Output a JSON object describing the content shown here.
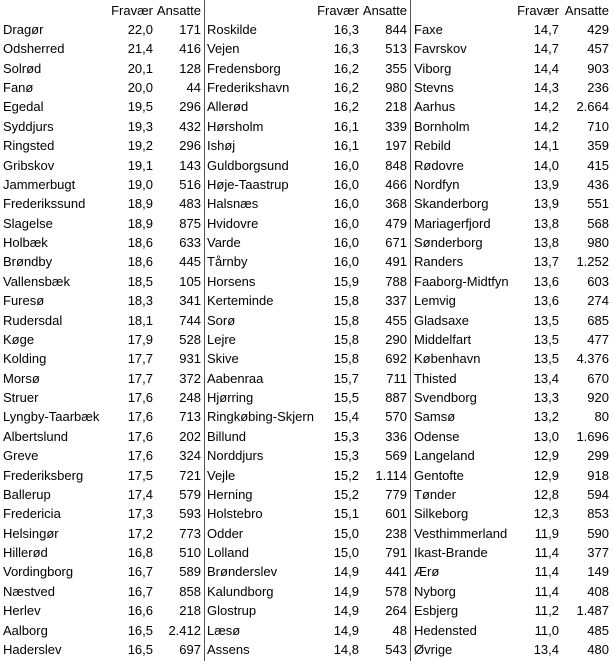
{
  "table": {
    "groups": [
      {
        "headers": [
          "Fravær",
          "Ansatte"
        ],
        "rows": [
          [
            "Dragør",
            "22,0",
            "171"
          ],
          [
            "Odsherred",
            "21,4",
            "416"
          ],
          [
            "Solrød",
            "20,1",
            "128"
          ],
          [
            "Fanø",
            "20,0",
            "44"
          ],
          [
            "Egedal",
            "19,5",
            "296"
          ],
          [
            "Syddjurs",
            "19,3",
            "432"
          ],
          [
            "Ringsted",
            "19,2",
            "296"
          ],
          [
            "Gribskov",
            "19,1",
            "143"
          ],
          [
            "Jammerbugt",
            "19,0",
            "516"
          ],
          [
            "Frederikssund",
            "18,9",
            "483"
          ],
          [
            "Slagelse",
            "18,9",
            "875"
          ],
          [
            "Holbæk",
            "18,6",
            "633"
          ],
          [
            "Brøndby",
            "18,6",
            "445"
          ],
          [
            "Vallensbæk",
            "18,5",
            "105"
          ],
          [
            "Furesø",
            "18,3",
            "341"
          ],
          [
            "Rudersdal",
            "18,1",
            "744"
          ],
          [
            "Køge",
            "17,9",
            "528"
          ],
          [
            "Kolding",
            "17,7",
            "931"
          ],
          [
            "Morsø",
            "17,7",
            "372"
          ],
          [
            "Struer",
            "17,6",
            "248"
          ],
          [
            "Lyngby-Taarbæk",
            "17,6",
            "713"
          ],
          [
            "Albertslund",
            "17,6",
            "202"
          ],
          [
            "Greve",
            "17,6",
            "324"
          ],
          [
            "Frederiksberg",
            "17,5",
            "721"
          ],
          [
            "Ballerup",
            "17,4",
            "579"
          ],
          [
            "Fredericia",
            "17,3",
            "593"
          ],
          [
            "Helsingør",
            "17,2",
            "773"
          ],
          [
            "Hillerød",
            "16,8",
            "510"
          ],
          [
            "Vordingborg",
            "16,7",
            "589"
          ],
          [
            "Næstved",
            "16,7",
            "858"
          ],
          [
            "Herlev",
            "16,6",
            "218"
          ],
          [
            "Aalborg",
            "16,5",
            "2.412"
          ],
          [
            "Haderslev",
            "16,5",
            "697"
          ]
        ]
      },
      {
        "headers": [
          "Fravær",
          "Ansatte"
        ],
        "rows": [
          [
            "Roskilde",
            "16,3",
            "844"
          ],
          [
            "Vejen",
            "16,3",
            "513"
          ],
          [
            "Fredensborg",
            "16,2",
            "355"
          ],
          [
            "Frederikshavn",
            "16,2",
            "980"
          ],
          [
            "Allerød",
            "16,2",
            "218"
          ],
          [
            "Hørsholm",
            "16,1",
            "339"
          ],
          [
            "Ishøj",
            "16,1",
            "197"
          ],
          [
            "Guldborgsund",
            "16,0",
            "848"
          ],
          [
            "Høje-Taastrup",
            "16,0",
            "466"
          ],
          [
            "Halsnæs",
            "16,0",
            "368"
          ],
          [
            "Hvidovre",
            "16,0",
            "479"
          ],
          [
            "Varde",
            "16,0",
            "671"
          ],
          [
            "Tårnby",
            "16,0",
            "491"
          ],
          [
            "Horsens",
            "15,9",
            "788"
          ],
          [
            "Kerteminde",
            "15,8",
            "337"
          ],
          [
            "Sorø",
            "15,8",
            "455"
          ],
          [
            "Lejre",
            "15,8",
            "290"
          ],
          [
            "Skive",
            "15,8",
            "692"
          ],
          [
            "Aabenraa",
            "15,7",
            "711"
          ],
          [
            "Hjørring",
            "15,5",
            "887"
          ],
          [
            "Ringkøbing-Skjern",
            "15,4",
            "570"
          ],
          [
            "Billund",
            "15,3",
            "336"
          ],
          [
            "Norddjurs",
            "15,3",
            "569"
          ],
          [
            "Vejle",
            "15,2",
            "1.114"
          ],
          [
            "Herning",
            "15,2",
            "779"
          ],
          [
            "Holstebro",
            "15,1",
            "601"
          ],
          [
            "Odder",
            "15,0",
            "238"
          ],
          [
            "Lolland",
            "15,0",
            "791"
          ],
          [
            "Brønderslev",
            "14,9",
            "441"
          ],
          [
            "Kalundborg",
            "14,9",
            "578"
          ],
          [
            "Glostrup",
            "14,9",
            "264"
          ],
          [
            "Læsø",
            "14,9",
            "48"
          ],
          [
            "Assens",
            "14,8",
            "543"
          ]
        ]
      },
      {
        "headers": [
          "Fravær",
          "Ansatte"
        ],
        "rows": [
          [
            "Faxe",
            "14,7",
            "429"
          ],
          [
            "Favrskov",
            "14,7",
            "457"
          ],
          [
            "Viborg",
            "14,4",
            "903"
          ],
          [
            "Stevns",
            "14,3",
            "236"
          ],
          [
            "Aarhus",
            "14,2",
            "2.664"
          ],
          [
            "Bornholm",
            "14,2",
            "710"
          ],
          [
            "Rebild",
            "14,1",
            "359"
          ],
          [
            "Rødovre",
            "14,0",
            "415"
          ],
          [
            "Nordfyn",
            "13,9",
            "436"
          ],
          [
            "Skanderborg",
            "13,9",
            "551"
          ],
          [
            "Mariagerfjord",
            "13,8",
            "568"
          ],
          [
            "Sønderborg",
            "13,8",
            "980"
          ],
          [
            "Randers",
            "13,7",
            "1.252"
          ],
          [
            "Faaborg-Midtfyn",
            "13,6",
            "603"
          ],
          [
            "Lemvig",
            "13,6",
            "274"
          ],
          [
            "Gladsaxe",
            "13,5",
            "685"
          ],
          [
            "Middelfart",
            "13,5",
            "477"
          ],
          [
            "København",
            "13,5",
            "4.376"
          ],
          [
            "Thisted",
            "13,4",
            "670"
          ],
          [
            "Svendborg",
            "13,3",
            "920"
          ],
          [
            "Samsø",
            "13,2",
            "80"
          ],
          [
            "Odense",
            "13,0",
            "1.696"
          ],
          [
            "Langeland",
            "12,9",
            "299"
          ],
          [
            "Gentofte",
            "12,9",
            "918"
          ],
          [
            "Tønder",
            "12,8",
            "594"
          ],
          [
            "Silkeborg",
            "12,3",
            "853"
          ],
          [
            "Vesthimmerland",
            "11,9",
            "590"
          ],
          [
            "Ikast-Brande",
            "11,4",
            "377"
          ],
          [
            "Ærø",
            "11,4",
            "149"
          ],
          [
            "Nyborg",
            "11,4",
            "408"
          ],
          [
            "Esbjerg",
            "11,2",
            "1.487"
          ],
          [
            "Hedensted",
            "11,0",
            "485"
          ],
          [
            "Øvrige",
            "13,4",
            "480"
          ]
        ]
      }
    ]
  }
}
